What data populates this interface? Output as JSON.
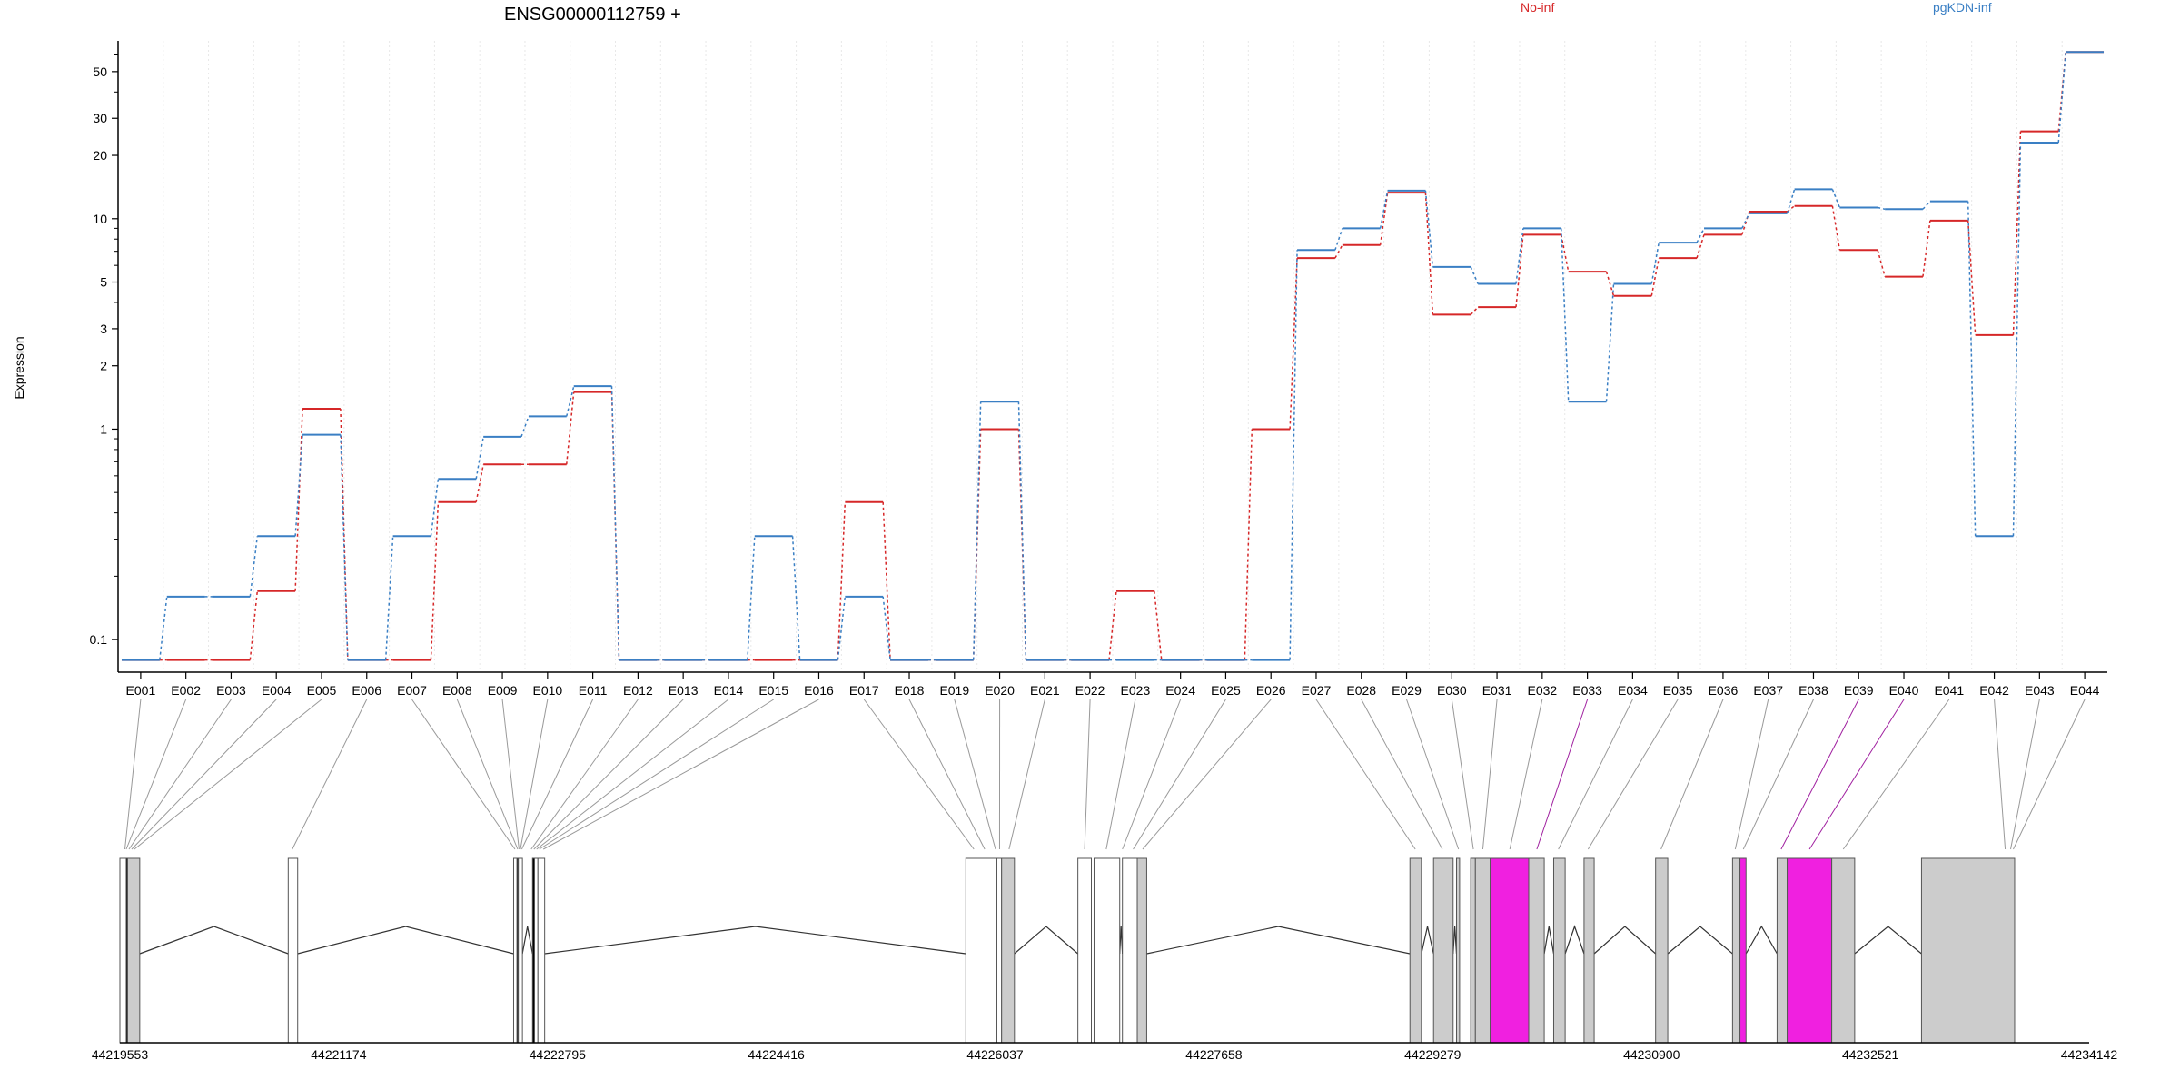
{
  "chart_data": {
    "type": "line",
    "title": "ENSG00000112759 +",
    "ylabel": "Expression",
    "yscale": "log",
    "ylim": [
      0.07,
      70
    ],
    "yticks": [
      0.1,
      1,
      2,
      3,
      5,
      10,
      20,
      30,
      50
    ],
    "ytick_labels": [
      "0.1",
      "1",
      "2",
      "3",
      "5",
      "10",
      "20",
      "30",
      "50"
    ],
    "grid": "vertical",
    "legend_placement": "top",
    "categories": [
      "E001",
      "E002",
      "E003",
      "E004",
      "E005",
      "E006",
      "E007",
      "E008",
      "E009",
      "E010",
      "E011",
      "E012",
      "E013",
      "E014",
      "E015",
      "E016",
      "E017",
      "E018",
      "E019",
      "E020",
      "E021",
      "E022",
      "E023",
      "E024",
      "E025",
      "E026",
      "E027",
      "E028",
      "E029",
      "E030",
      "E031",
      "E032",
      "E033",
      "E034",
      "E035",
      "E036",
      "E037",
      "E038",
      "E039",
      "E040",
      "E041",
      "E042",
      "E043",
      "E044"
    ],
    "series": [
      {
        "name": "No-inf",
        "color": "#d62728",
        "values": [
          0.08,
          0.08,
          0.08,
          0.17,
          1.25,
          0.08,
          0.08,
          0.45,
          0.68,
          0.68,
          1.5,
          0.08,
          0.08,
          0.08,
          0.08,
          0.08,
          0.45,
          0.08,
          0.08,
          1.0,
          0.08,
          0.08,
          0.17,
          0.08,
          0.08,
          1.0,
          6.5,
          7.5,
          13.3,
          3.5,
          3.8,
          8.4,
          5.6,
          4.3,
          6.5,
          8.4,
          10.8,
          11.5,
          7.1,
          5.3,
          9.8,
          2.8,
          26,
          62
        ]
      },
      {
        "name": "pgKDN-inf",
        "color": "#3a7fc4",
        "values": [
          0.08,
          0.16,
          0.16,
          0.31,
          0.94,
          0.08,
          0.31,
          0.58,
          0.92,
          1.15,
          1.6,
          0.08,
          0.08,
          0.08,
          0.31,
          0.08,
          0.16,
          0.08,
          0.08,
          1.35,
          0.08,
          0.08,
          0.08,
          0.08,
          0.08,
          0.08,
          7.1,
          9.0,
          13.6,
          5.9,
          4.9,
          9.0,
          1.35,
          4.9,
          7.7,
          9.0,
          10.6,
          13.8,
          11.3,
          11.1,
          12.1,
          0.31,
          23,
          62
        ]
      }
    ],
    "genomic_ticks": [
      "44219553",
      "44221174",
      "44222795",
      "44224416",
      "44226037",
      "44227658",
      "44229279",
      "44230900",
      "44232521",
      "44234142"
    ],
    "highlighted_exons": [
      "E033",
      "E039",
      "E040"
    ],
    "highlight_color": "#f020e0"
  }
}
